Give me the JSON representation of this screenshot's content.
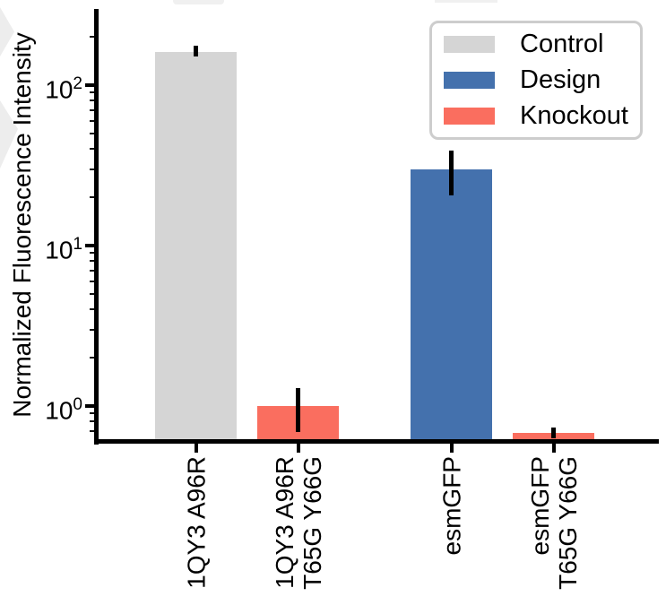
{
  "chart_data": {
    "type": "bar",
    "title": "",
    "xlabel": "",
    "ylabel": "Normalized Fluorescence Intensity",
    "yscale": "log",
    "ylim": [
      0.6,
      300
    ],
    "grid": false,
    "ytick_exponents": [
      0,
      1,
      2
    ],
    "categories": [
      "1QY3 A96R",
      "1QY3 A96R\nT65G Y66G",
      "esmGFP",
      "esmGFP\nT65G Y66G"
    ],
    "bars": [
      {
        "label_lines": [
          "1QY3 A96R"
        ],
        "group": "Control",
        "value": 160,
        "err_low": 150,
        "err_high": 176
      },
      {
        "label_lines": [
          "1QY3 A96R",
          "T65G Y66G"
        ],
        "group": "Knockout",
        "value": 1.0,
        "err_low": 0.69,
        "err_high": 1.29
      },
      {
        "label_lines": [
          "esmGFP"
        ],
        "group": "Design",
        "value": 30,
        "err_low": 20.5,
        "err_high": 39
      },
      {
        "label_lines": [
          "esmGFP",
          "T65G Y66G"
        ],
        "group": "Knockout",
        "value": 0.68,
        "err_low": 0.63,
        "err_high": 0.73
      }
    ],
    "colors": {
      "Control": "#D5D5D5",
      "Design": "#4471AD",
      "Knockout": "#FA6E5F"
    },
    "legend": {
      "position": "upper right",
      "entries": [
        {
          "label": "Control",
          "group": "Control"
        },
        {
          "label": "Design",
          "group": "Design"
        },
        {
          "label": "Knockout",
          "group": "Knockout"
        }
      ]
    },
    "axis_color": "#000000",
    "errorbar_color": "#000000"
  }
}
